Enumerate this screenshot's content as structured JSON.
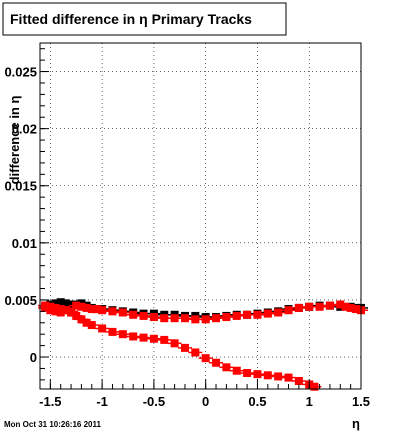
{
  "chart_data": {
    "type": "scatter",
    "title": "Fitted difference in  η  Primary Tracks",
    "xlabel": "η",
    "ylabel": "difference in η",
    "xlim": [
      -1.6,
      1.5
    ],
    "ylim": [
      -0.0028,
      0.0275
    ],
    "grid": true,
    "x_ticks": [
      -1.5,
      -1,
      -0.5,
      0,
      0.5,
      1,
      1.5
    ],
    "x_tick_labels": [
      "-1.5",
      "-1",
      "-0.5",
      "0",
      "0.5",
      "1",
      "1.5"
    ],
    "y_ticks": [
      0,
      0.005,
      0.01,
      0.015,
      0.02,
      0.025
    ],
    "y_tick_labels": [
      "0",
      "0.005",
      "0.01",
      "0.015",
      "0.02",
      "0.025"
    ],
    "series": [
      {
        "color": "#000000",
        "marker": "square",
        "x": [
          -1.55,
          -1.5,
          -1.45,
          -1.4,
          -1.35,
          -1.3,
          -1.25,
          -1.2,
          -1.15,
          -1.1,
          -1.05,
          -1.0,
          -0.9,
          -0.8,
          -0.7,
          -0.6,
          -0.5,
          -0.4,
          -0.3,
          -0.2,
          -0.1,
          0.0,
          0.1,
          0.2,
          0.3,
          0.4,
          0.5,
          0.6,
          0.7,
          0.8,
          0.9,
          1.0,
          1.1,
          1.2,
          1.3,
          1.4,
          1.45,
          1.5
        ],
        "y": [
          0.0045,
          0.0046,
          0.0047,
          0.0048,
          0.0047,
          0.0046,
          0.0046,
          0.0047,
          0.0045,
          0.0043,
          0.0042,
          0.0042,
          0.0041,
          0.004,
          0.0039,
          0.0038,
          0.0038,
          0.0037,
          0.0037,
          0.0036,
          0.0036,
          0.0035,
          0.0035,
          0.0036,
          0.0037,
          0.0037,
          0.0038,
          0.0039,
          0.004,
          0.0042,
          0.0043,
          0.0044,
          0.0045,
          0.0045,
          0.0044,
          0.0044,
          0.0043,
          0.0043
        ]
      },
      {
        "color": "#ff0000",
        "marker": "square",
        "x": [
          -1.55,
          -1.5,
          -1.45,
          -1.4,
          -1.35,
          -1.3,
          -1.25,
          -1.2,
          -1.15,
          -1.1,
          -1.05,
          -1.0,
          -0.9,
          -0.8,
          -0.7,
          -0.6,
          -0.5,
          -0.4,
          -0.3,
          -0.2,
          -0.1,
          0.0,
          0.1,
          0.2,
          0.3,
          0.4,
          0.5,
          0.6,
          0.7,
          0.8,
          0.9,
          1.0,
          1.1,
          1.2,
          1.3,
          1.35,
          1.4,
          1.45,
          1.5
        ],
        "y": [
          0.0043,
          0.0041,
          0.004,
          0.0039,
          0.0041,
          0.0039,
          0.0045,
          0.0044,
          0.0043,
          0.0042,
          0.0042,
          0.0041,
          0.004,
          0.0039,
          0.0037,
          0.0036,
          0.0035,
          0.0034,
          0.0034,
          0.0034,
          0.0033,
          0.0033,
          0.0034,
          0.0035,
          0.0036,
          0.0037,
          0.0037,
          0.0038,
          0.0039,
          0.0041,
          0.0043,
          0.0044,
          0.0044,
          0.0045,
          0.0046,
          0.0044,
          0.0043,
          0.0042,
          0.0041
        ]
      },
      {
        "color": "#ff0000",
        "marker": "square",
        "x": [
          -1.55,
          -1.5,
          -1.45,
          -1.4,
          -1.35,
          -1.3,
          -1.25,
          -1.2,
          -1.15,
          -1.1,
          -1.0,
          -0.9,
          -0.8,
          -0.7,
          -0.6,
          -0.5,
          -0.4,
          -0.3,
          -0.2,
          -0.1,
          0.0,
          0.1,
          0.2,
          0.3,
          0.4,
          0.5,
          0.6,
          0.7,
          0.8,
          0.9,
          1.0,
          1.05
        ],
        "y": [
          0.0045,
          0.0044,
          0.0043,
          0.0042,
          0.0041,
          0.004,
          0.0036,
          0.0033,
          0.003,
          0.0028,
          0.0025,
          0.0022,
          0.002,
          0.0018,
          0.0017,
          0.0016,
          0.0015,
          0.0012,
          0.0008,
          0.0004,
          -0.0001,
          -0.0005,
          -0.0009,
          -0.0012,
          -0.0014,
          -0.0015,
          -0.0016,
          -0.0017,
          -0.0018,
          -0.0021,
          -0.0024,
          -0.0026
        ]
      }
    ],
    "timestamp": "Mon Oct 31 10:26:16 2011"
  }
}
